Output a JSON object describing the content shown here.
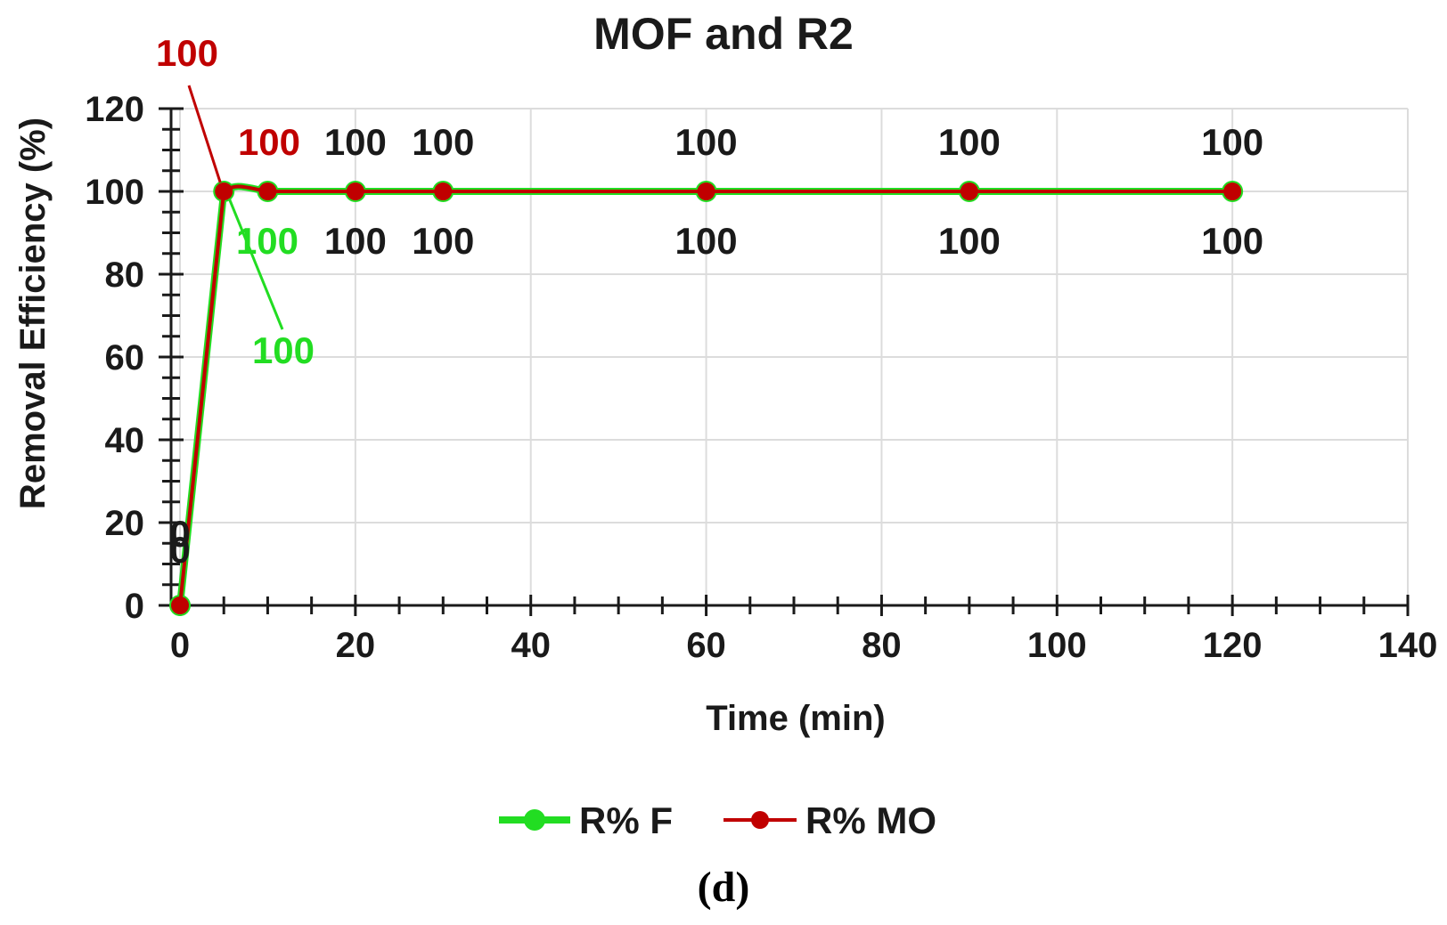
{
  "chart_data": {
    "type": "line",
    "title": "MOF and R2",
    "xlabel": "Time (min)",
    "ylabel": "Removal Efficiency (%)",
    "xlim": [
      0,
      140
    ],
    "ylim": [
      0,
      120
    ],
    "x_ticks": [
      0,
      20,
      40,
      60,
      80,
      100,
      120,
      140
    ],
    "y_ticks": [
      0,
      20,
      40,
      60,
      80,
      100,
      120
    ],
    "grid": true,
    "legend": "bottom",
    "x": [
      0,
      5,
      10,
      20,
      30,
      60,
      90,
      120
    ],
    "series": [
      {
        "name": "R% F",
        "color": "#22dd22",
        "values": [
          0,
          100,
          100,
          100,
          100,
          100,
          100,
          100
        ],
        "data_labels": [
          "0",
          "100",
          "100",
          "100",
          "100",
          "100",
          "100",
          "100"
        ]
      },
      {
        "name": "R% MO",
        "color": "#c00000",
        "values": [
          0,
          100,
          100,
          100,
          100,
          100,
          100,
          100
        ],
        "data_labels": [
          "0",
          "100",
          "100",
          "100",
          "100",
          "100",
          "100",
          "100"
        ]
      }
    ]
  },
  "caption": "(d)"
}
